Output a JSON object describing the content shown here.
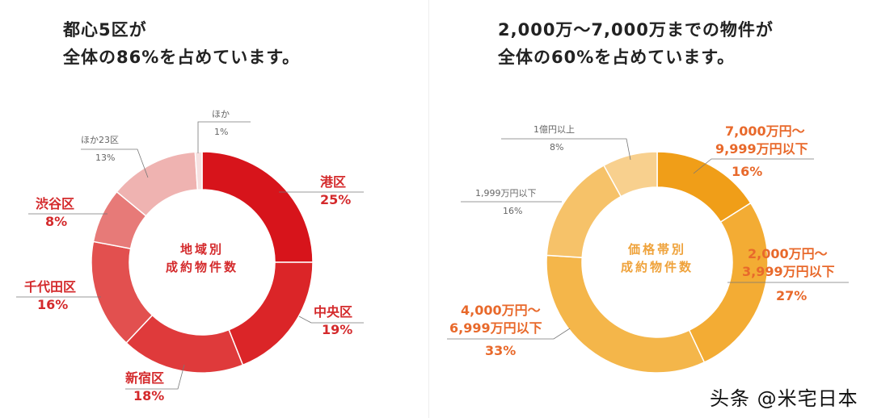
{
  "left": {
    "title_line1": "都心5区が",
    "title_line2": "全体の86%を占めています。",
    "center_line1": "地域別",
    "center_line2": "成約物件数"
  },
  "right": {
    "title_line1": "2,000万～7,000万までの物件が",
    "title_line2": "全体の60%を占めています。",
    "center_line1": "価格帯別",
    "center_line2": "成約物件数"
  },
  "watermark": "头条 @米宅日本",
  "chart_data": [
    {
      "type": "pie",
      "donut": true,
      "title": "地域別 成約物件数",
      "slices": [
        {
          "label": "港区",
          "value": 25,
          "value_label": "25%",
          "color": "#d7141b"
        },
        {
          "label": "中央区",
          "value": 19,
          "value_label": "19%",
          "color": "#db2528"
        },
        {
          "label": "新宿区",
          "value": 18,
          "value_label": "18%",
          "color": "#df3a3b"
        },
        {
          "label": "千代田区",
          "value": 16,
          "value_label": "16%",
          "color": "#e2504f"
        },
        {
          "label": "渋谷区",
          "value": 8,
          "value_label": "8%",
          "color": "#e77a78"
        },
        {
          "label": "ほか23区",
          "value": 13,
          "value_label": "13%",
          "color": "#efb3b1"
        },
        {
          "label": "ほか",
          "value": 1,
          "value_label": "1%",
          "color": "#f6e1e1"
        }
      ]
    },
    {
      "type": "pie",
      "donut": true,
      "title": "価格帯別 成約物件数",
      "slices": [
        {
          "label": "7,000万円～9,999万円以下",
          "line1": "7,000万円～",
          "line2": "9,999万円以下",
          "value": 16,
          "value_label": "16%",
          "color": "#f09e18"
        },
        {
          "label": "2,000万円～3,999万円以下",
          "line1": "2,000万円～",
          "line2": "3,999万円以下",
          "value": 27,
          "value_label": "27%",
          "color": "#f3ac34"
        },
        {
          "label": "4,000万円～6,999万円以下",
          "line1": "4,000万円～",
          "line2": "6,999万円以下",
          "value": 33,
          "value_label": "33%",
          "color": "#f4b64a"
        },
        {
          "label": "1,999万円以下",
          "value": 16,
          "value_label": "16%",
          "color": "#f6c269"
        },
        {
          "label": "1億円以上",
          "value": 8,
          "value_label": "8%",
          "color": "#f8d08e"
        }
      ]
    }
  ]
}
